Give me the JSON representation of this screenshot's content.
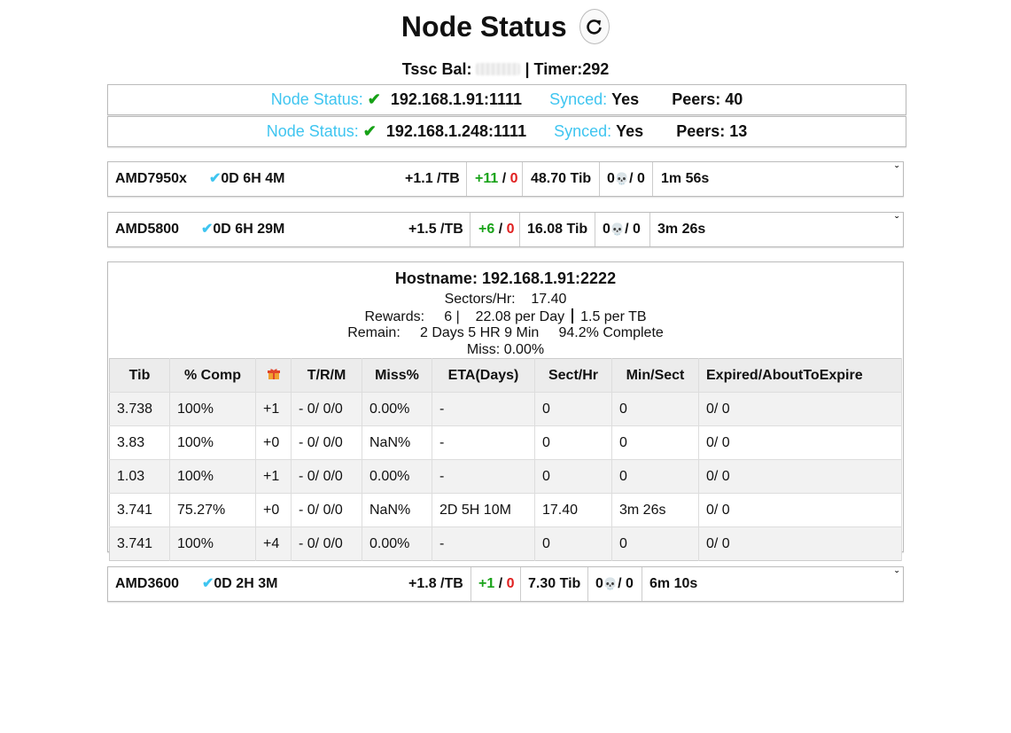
{
  "header": {
    "title": "Node Status",
    "balance_label": "Tssc Bal:",
    "timer_text": "| Timer:292"
  },
  "nodes": [
    {
      "status_label": "Node Status:",
      "check": "✔",
      "address": "192.168.1.91:1111",
      "synced_label": "Synced:",
      "synced_value": "Yes",
      "peers": "Peers: 40"
    },
    {
      "status_label": "Node Status:",
      "check": "✔",
      "address": "192.168.1.248:1111",
      "synced_label": "Synced:",
      "synced_value": "Yes",
      "peers": "Peers: 13"
    }
  ],
  "workers": [
    {
      "name": "AMD7950x",
      "check": "✔",
      "uptime": "0D 6H 4M",
      "rate": "+1.1 /TB",
      "rewards": "+11",
      "slash": "/",
      "failed": "0",
      "size": "48.70 Tib",
      "miss_left": "0",
      "miss_right": "/ 0",
      "last": "1m 56s"
    },
    {
      "name": "AMD5800",
      "check": "✔",
      "uptime": "0D 6H 29M",
      "rate": "+1.5 /TB",
      "rewards": "+6",
      "slash": "/",
      "failed": "0",
      "size": "16.08 Tib",
      "miss_left": "0",
      "miss_right": "/ 0",
      "last": "3m 26s"
    },
    {
      "name": "AMD3600",
      "check": "✔",
      "uptime": "0D 2H 3M",
      "rate": "+1.8 /TB",
      "rewards": "+1",
      "slash": "/",
      "failed": "0",
      "size": "7.30 Tib",
      "miss_left": "0",
      "miss_right": "/ 0",
      "last": "6m 10s"
    }
  ],
  "detail": {
    "hostname": "Hostname: 192.168.1.91:2222",
    "sectors_label": "Sectors/Hr:",
    "sectors_value": "17.40",
    "rewards_label": "Rewards:",
    "rewards_count": "6 |",
    "rewards_per_day": "22.08 per Day",
    "rewards_per_tb": "1.5 per TB",
    "remain_label": "Remain:",
    "remain_value": "2 Days 5 HR 9 Min",
    "complete": "94.2% Complete",
    "miss": "Miss: 0.00%",
    "columns": [
      "Tib",
      "% Comp",
      "",
      "T/R/M",
      "Miss%",
      "ETA(Days)",
      "Sect/Hr",
      "Min/Sect",
      "Expired/AboutToExpire"
    ],
    "rows": [
      [
        "3.738",
        "100%",
        "+1",
        "- 0/ 0/0",
        "0.00%",
        "-",
        "0",
        "0",
        "0/ 0"
      ],
      [
        "3.83",
        "100%",
        "+0",
        "- 0/ 0/0",
        "NaN%",
        "-",
        "0",
        "0",
        "0/ 0"
      ],
      [
        "1.03",
        "100%",
        "+1",
        "- 0/ 0/0",
        "0.00%",
        "-",
        "0",
        "0",
        "0/ 0"
      ],
      [
        "3.741",
        "75.27%",
        "+0",
        "- 0/ 0/0",
        "NaN%",
        "2D 5H 10M",
        "17.40",
        "3m 26s",
        "0/ 0"
      ],
      [
        "3.741",
        "100%",
        "+4",
        "- 0/ 0/0",
        "0.00%",
        "-",
        "0",
        "0",
        "0/ 0"
      ]
    ]
  },
  "icons": {
    "refresh": "refresh-icon",
    "gift": "gift-icon",
    "skull": "skull-icon",
    "chevron": "chevron-down-icon"
  }
}
